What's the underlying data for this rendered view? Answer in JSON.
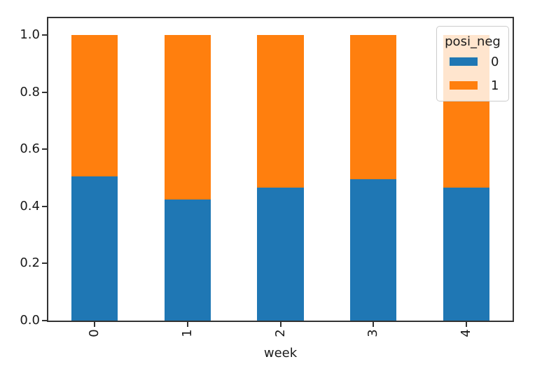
{
  "chart_data": {
    "type": "bar",
    "stacked": true,
    "normalized": true,
    "title": "",
    "xlabel": "week",
    "ylabel": "",
    "categories": [
      "0",
      "1",
      "2",
      "3",
      "4"
    ],
    "series": [
      {
        "name": "0",
        "color": "#1f77b4",
        "values": [
          0.505,
          0.423,
          0.465,
          0.495,
          0.465
        ]
      },
      {
        "name": "1",
        "color": "#ff7f0e",
        "values": [
          0.495,
          0.577,
          0.535,
          0.505,
          0.535
        ]
      }
    ],
    "yticks": [
      "0.0",
      "0.2",
      "0.4",
      "0.6",
      "0.8",
      "1.0"
    ],
    "ylim": [
      0.0,
      1.07
    ],
    "bar_width_fraction": 0.5,
    "xtick_rotation_deg": 90,
    "grid": false,
    "legend": {
      "title": "posi_neg",
      "position": "upper right",
      "entries": [
        {
          "label": "0",
          "color": "#1f77b4"
        },
        {
          "label": "1",
          "color": "#ff7f0e"
        }
      ]
    }
  },
  "colors": {
    "background": "#ffffff",
    "spine": "#333333",
    "tick": "#333333",
    "text": "#1a1a1a",
    "legend_border": "#cccccc"
  }
}
